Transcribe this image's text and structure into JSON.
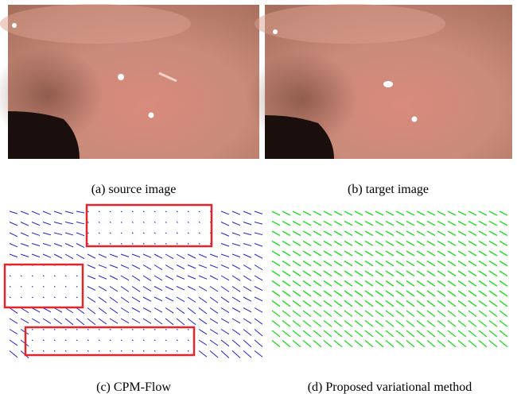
{
  "figure": {
    "panels": [
      {
        "caption": "(a)  source image"
      },
      {
        "caption": "(b)  target image"
      },
      {
        "caption": "(c)  CPM-Flow"
      },
      {
        "caption": "(d)  Proposed variational method"
      }
    ]
  }
}
